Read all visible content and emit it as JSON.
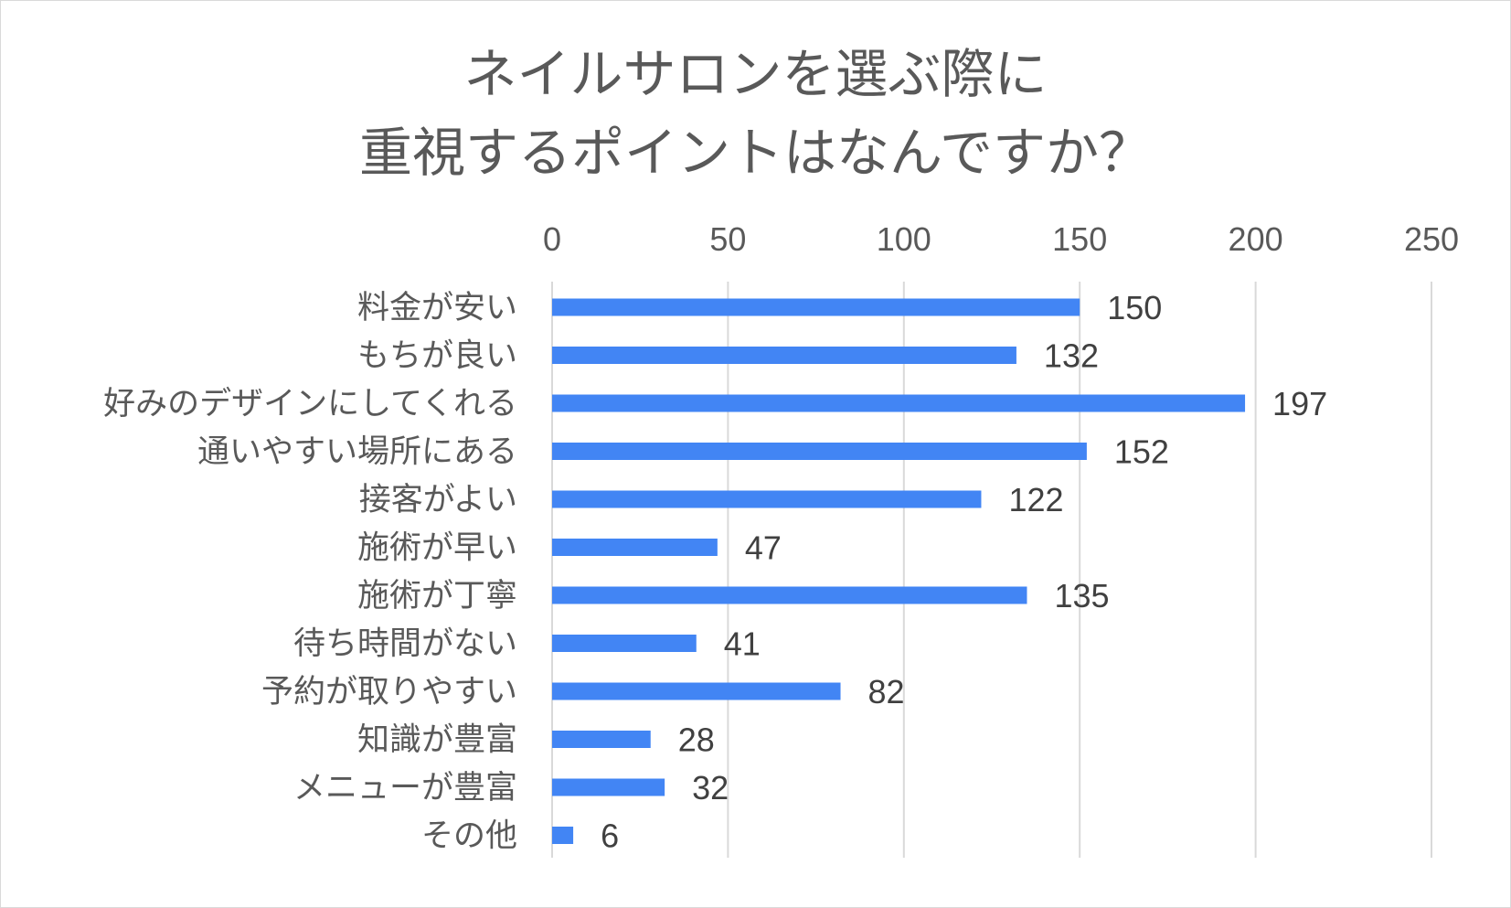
{
  "chart_data": {
    "type": "bar",
    "orientation": "horizontal",
    "title_lines": [
      "ネイルサロンを選ぶ際に",
      "重視するポイントはなんですか？"
    ],
    "categories": [
      "料金が安い",
      "もちが良い",
      "好みのデザインにしてくれる",
      "通いやすい場所にある",
      "接客がよい",
      "施術が早い",
      "施術が丁寧",
      "待ち時間がない",
      "予約が取りやすい",
      "知識が豊富",
      "メニューが豊富",
      "その他"
    ],
    "values": [
      150,
      132,
      197,
      152,
      122,
      47,
      135,
      41,
      82,
      28,
      32,
      6
    ],
    "xlim": [
      0,
      250
    ],
    "x_ticks": [
      0,
      50,
      100,
      150,
      200,
      250
    ],
    "axis_position": "top",
    "grid": true,
    "legend": "none",
    "colors": {
      "bar": "#4285f4",
      "grid": "#d9d9d9",
      "text": "#595959"
    }
  }
}
